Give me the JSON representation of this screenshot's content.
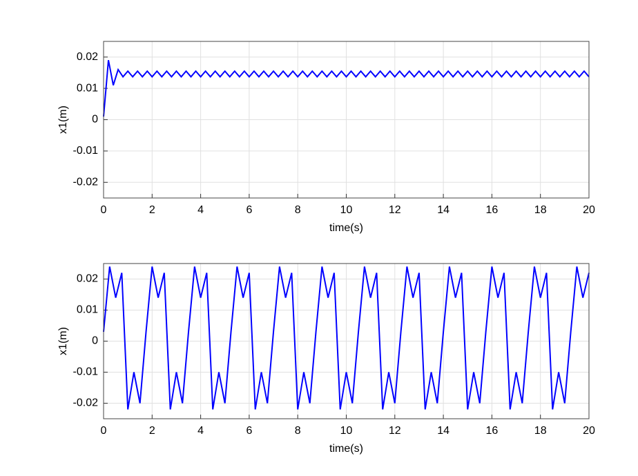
{
  "chart_data": [
    {
      "type": "line",
      "xlabel": "time(s)",
      "ylabel": "x1(m)",
      "color": "#0000ff",
      "grid": true,
      "xlim": [
        0,
        20
      ],
      "xticks": [
        0,
        2,
        4,
        6,
        8,
        10,
        12,
        14,
        16,
        18,
        20
      ],
      "ylim": [
        -0.025,
        0.025
      ],
      "yticks": [
        -0.02,
        -0.01,
        0,
        0.01,
        0.02
      ],
      "x": [
        0,
        0.2,
        0.4,
        0.6,
        0.8,
        1,
        1.2,
        1.4,
        1.6,
        1.8,
        2,
        2.2,
        2.4,
        2.6,
        2.8,
        3,
        3.2,
        3.4,
        3.6,
        3.8,
        4,
        4.2,
        4.4,
        4.6,
        4.8,
        5,
        5.2,
        5.4,
        5.6,
        5.8,
        6,
        6.2,
        6.4,
        6.6,
        6.8,
        7,
        7.2,
        7.4,
        7.6,
        7.8,
        8,
        8.2,
        8.4,
        8.6,
        8.8,
        9,
        9.2,
        9.4,
        9.6,
        9.8,
        10,
        10.2,
        10.4,
        10.6,
        10.8,
        11,
        11.2,
        11.4,
        11.6,
        11.8,
        12,
        12.2,
        12.4,
        12.6,
        12.8,
        13,
        13.2,
        13.4,
        13.6,
        13.8,
        14,
        14.2,
        14.4,
        14.6,
        14.8,
        15,
        15.2,
        15.4,
        15.6,
        15.8,
        16,
        16.2,
        16.4,
        16.6,
        16.8,
        17,
        17.2,
        17.4,
        17.6,
        17.8,
        18,
        18.2,
        18.4,
        18.6,
        18.8,
        19,
        19.2,
        19.4,
        19.6,
        19.8,
        20
      ],
      "values": [
        0.001,
        0.019,
        0.011,
        0.016,
        0.0137,
        0.0155,
        0.0137,
        0.0155,
        0.0137,
        0.0155,
        0.0137,
        0.0155,
        0.0137,
        0.0155,
        0.0137,
        0.0155,
        0.0137,
        0.0155,
        0.0137,
        0.0155,
        0.0137,
        0.0155,
        0.0137,
        0.0155,
        0.0137,
        0.0155,
        0.0137,
        0.0155,
        0.0137,
        0.0155,
        0.0137,
        0.0155,
        0.0137,
        0.0155,
        0.0137,
        0.0155,
        0.0137,
        0.0155,
        0.0137,
        0.0155,
        0.0137,
        0.0155,
        0.0137,
        0.0155,
        0.0137,
        0.0155,
        0.0137,
        0.0155,
        0.0137,
        0.0155,
        0.0137,
        0.0155,
        0.0137,
        0.0155,
        0.0137,
        0.0155,
        0.0137,
        0.0155,
        0.0137,
        0.0155,
        0.0137,
        0.0155,
        0.0137,
        0.0155,
        0.0137,
        0.0155,
        0.0137,
        0.0155,
        0.0137,
        0.0155,
        0.0137,
        0.0155,
        0.0137,
        0.0155,
        0.0137,
        0.0155,
        0.0137,
        0.0155,
        0.0137,
        0.0155,
        0.0137,
        0.0155,
        0.0137,
        0.0155,
        0.0137,
        0.0155,
        0.0137,
        0.0155,
        0.0137,
        0.0155,
        0.0137,
        0.0155,
        0.0137,
        0.0155,
        0.0137,
        0.0155,
        0.0137,
        0.0155,
        0.0137,
        0.0155,
        0.0137
      ]
    },
    {
      "type": "line",
      "xlabel": "time(s)",
      "ylabel": "x1(m)",
      "color": "#0000ff",
      "grid": true,
      "xlim": [
        0,
        20
      ],
      "xticks": [
        0,
        2,
        4,
        6,
        8,
        10,
        12,
        14,
        16,
        18,
        20
      ],
      "ylim": [
        -0.025,
        0.025
      ],
      "yticks": [
        -0.02,
        -0.01,
        0,
        0.01,
        0.02
      ],
      "x": [
        0,
        0.25,
        0.5,
        0.75,
        1,
        1.25,
        1.5,
        1.75,
        2,
        2.25,
        2.5,
        2.75,
        3,
        3.25,
        3.5,
        3.75,
        4,
        4.25,
        4.5,
        4.75,
        5,
        5.25,
        5.5,
        5.75,
        6,
        6.25,
        6.5,
        6.75,
        7,
        7.25,
        7.5,
        7.75,
        8,
        8.25,
        8.5,
        8.75,
        9,
        9.25,
        9.5,
        9.75,
        10,
        10.25,
        10.5,
        10.75,
        11,
        11.25,
        11.5,
        11.75,
        12,
        12.25,
        12.5,
        12.75,
        13,
        13.25,
        13.5,
        13.75,
        14,
        14.25,
        14.5,
        14.75,
        15,
        15.25,
        15.5,
        15.75,
        16,
        16.25,
        16.5,
        16.75,
        17,
        17.25,
        17.5,
        17.75,
        18,
        18.25,
        18.5,
        18.75,
        19,
        19.25,
        19.5,
        19.75,
        20
      ],
      "values": [
        0.003,
        0.024,
        0.014,
        0.022,
        -0.022,
        -0.01,
        -0.02,
        0.003,
        0.024,
        0.014,
        0.022,
        -0.022,
        -0.01,
        -0.02,
        0.003,
        0.024,
        0.014,
        0.022,
        -0.022,
        -0.01,
        -0.02,
        0.003,
        0.024,
        0.014,
        0.022,
        -0.022,
        -0.01,
        -0.02,
        0.003,
        0.024,
        0.014,
        0.022,
        -0.022,
        -0.01,
        -0.02,
        0.003,
        0.024,
        0.014,
        0.022,
        -0.022,
        -0.01,
        -0.02,
        0.003,
        0.024,
        0.014,
        0.022,
        -0.022,
        -0.01,
        -0.02,
        0.003,
        0.024,
        0.014,
        0.022,
        -0.022,
        -0.01,
        -0.02,
        0.003,
        0.024,
        0.014,
        0.022,
        -0.022,
        -0.01,
        -0.02,
        0.003,
        0.024,
        0.014,
        0.022,
        -0.022,
        -0.01,
        -0.02,
        0.003,
        0.024,
        0.014,
        0.022,
        -0.022,
        -0.01,
        -0.02,
        0.003,
        0.024,
        0.014,
        0.022
      ]
    }
  ]
}
